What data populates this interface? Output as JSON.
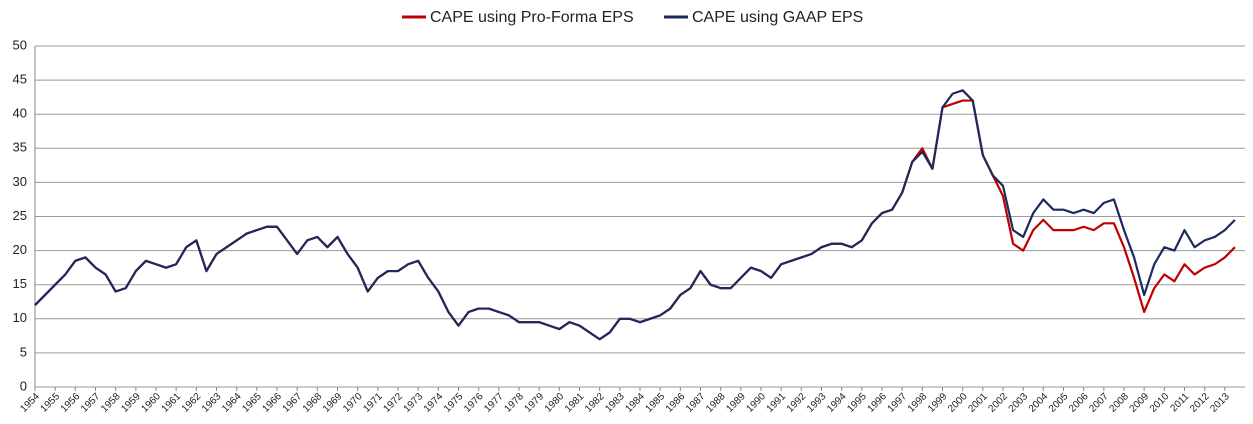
{
  "chart_data": {
    "type": "line",
    "x": [
      1954,
      1954.5,
      1955,
      1955.5,
      1956,
      1956.5,
      1957,
      1957.5,
      1958,
      1958.5,
      1959,
      1959.5,
      1960,
      1960.5,
      1961,
      1961.5,
      1962,
      1962.5,
      1963,
      1963.5,
      1964,
      1964.5,
      1965,
      1965.5,
      1966,
      1966.5,
      1967,
      1967.5,
      1968,
      1968.5,
      1969,
      1969.5,
      1970,
      1970.5,
      1971,
      1971.5,
      1972,
      1972.5,
      1973,
      1973.5,
      1974,
      1974.5,
      1975,
      1975.5,
      1976,
      1976.5,
      1977,
      1977.5,
      1978,
      1978.5,
      1979,
      1979.5,
      1980,
      1980.5,
      1981,
      1981.5,
      1982,
      1982.5,
      1983,
      1983.5,
      1984,
      1984.5,
      1985,
      1985.5,
      1986,
      1986.5,
      1987,
      1987.5,
      1988,
      1988.5,
      1989,
      1989.5,
      1990,
      1990.5,
      1991,
      1991.5,
      1992,
      1992.5,
      1993,
      1993.5,
      1994,
      1994.5,
      1995,
      1995.5,
      1996,
      1996.5,
      1997,
      1997.5,
      1998,
      1998.5,
      1999,
      1999.5,
      2000,
      2000.5,
      2001,
      2001.5,
      2002,
      2002.5,
      2003,
      2003.5,
      2004,
      2004.5,
      2005,
      2005.5,
      2006,
      2006.5,
      2007,
      2007.5,
      2008,
      2008.5,
      2009,
      2009.5,
      2010,
      2010.5,
      2011,
      2011.5,
      2012,
      2012.5,
      2013,
      2013.5
    ],
    "series": [
      {
        "name": "CAPE using Pro-Forma EPS",
        "color": "#c00000",
        "values": [
          12,
          13.5,
          15,
          16.5,
          18.5,
          19,
          17.5,
          16.5,
          14,
          14.5,
          17,
          18.5,
          18,
          17.5,
          18,
          20.5,
          21.5,
          17,
          19.5,
          20.5,
          21.5,
          22.5,
          23,
          23.5,
          23.5,
          21.5,
          19.5,
          21.5,
          22,
          20.5,
          22,
          19.5,
          17.5,
          14,
          16,
          17,
          17,
          18,
          18.5,
          16,
          14,
          11,
          9,
          11,
          11.5,
          11.5,
          11,
          10.5,
          9.5,
          9.5,
          9.5,
          9,
          8.5,
          9.5,
          9,
          8,
          7,
          8,
          10,
          10,
          9.5,
          10,
          10.5,
          11.5,
          13.5,
          14.5,
          17,
          15,
          14.5,
          14.5,
          16,
          17.5,
          17,
          16,
          18,
          18.5,
          19,
          19.5,
          20.5,
          21,
          21,
          20.5,
          21.5,
          24,
          25.5,
          26,
          28.5,
          33,
          35,
          32,
          41,
          41.5,
          42,
          42,
          34,
          31,
          28,
          21,
          20,
          23,
          24.5,
          23,
          23,
          23,
          23.5,
          23,
          24,
          24,
          20.5,
          16,
          11,
          14.5,
          16.5,
          15.5,
          18,
          16.5,
          17.5,
          18,
          19,
          20.5
        ]
      },
      {
        "name": "CAPE using GAAP EPS",
        "color": "#1c2a5e",
        "values": [
          12,
          13.5,
          15,
          16.5,
          18.5,
          19,
          17.5,
          16.5,
          14,
          14.5,
          17,
          18.5,
          18,
          17.5,
          18,
          20.5,
          21.5,
          17,
          19.5,
          20.5,
          21.5,
          22.5,
          23,
          23.5,
          23.5,
          21.5,
          19.5,
          21.5,
          22,
          20.5,
          22,
          19.5,
          17.5,
          14,
          16,
          17,
          17,
          18,
          18.5,
          16,
          14,
          11,
          9,
          11,
          11.5,
          11.5,
          11,
          10.5,
          9.5,
          9.5,
          9.5,
          9,
          8.5,
          9.5,
          9,
          8,
          7,
          8,
          10,
          10,
          9.5,
          10,
          10.5,
          11.5,
          13.5,
          14.5,
          17,
          15,
          14.5,
          14.5,
          16,
          17.5,
          17,
          16,
          18,
          18.5,
          19,
          19.5,
          20.5,
          21,
          21,
          20.5,
          21.5,
          24,
          25.5,
          26,
          28.5,
          33,
          34.5,
          32,
          41,
          43,
          43.5,
          42,
          34,
          31,
          29.5,
          23,
          22,
          25.5,
          27.5,
          26,
          26,
          25.5,
          26,
          25.5,
          27,
          27.5,
          23,
          19,
          13.5,
          18,
          20.5,
          20,
          23,
          20.5,
          21.5,
          22,
          23,
          24.5
        ]
      }
    ],
    "xlim": [
      1954,
      2014
    ],
    "xticks": [
      1954,
      1955,
      1956,
      1957,
      1958,
      1959,
      1960,
      1961,
      1962,
      1963,
      1964,
      1965,
      1966,
      1967,
      1968,
      1969,
      1970,
      1971,
      1972,
      1973,
      1974,
      1975,
      1976,
      1977,
      1978,
      1979,
      1980,
      1981,
      1982,
      1983,
      1984,
      1985,
      1986,
      1987,
      1988,
      1989,
      1990,
      1991,
      1992,
      1993,
      1994,
      1995,
      1996,
      1997,
      1998,
      1999,
      2000,
      2001,
      2002,
      2003,
      2004,
      2005,
      2006,
      2007,
      2008,
      2009,
      2010,
      2011,
      2012,
      2013
    ],
    "ylim": [
      0,
      50
    ],
    "yticks": [
      0,
      5,
      10,
      15,
      20,
      25,
      30,
      35,
      40,
      45,
      50
    ],
    "grid": true,
    "legend": "top"
  }
}
